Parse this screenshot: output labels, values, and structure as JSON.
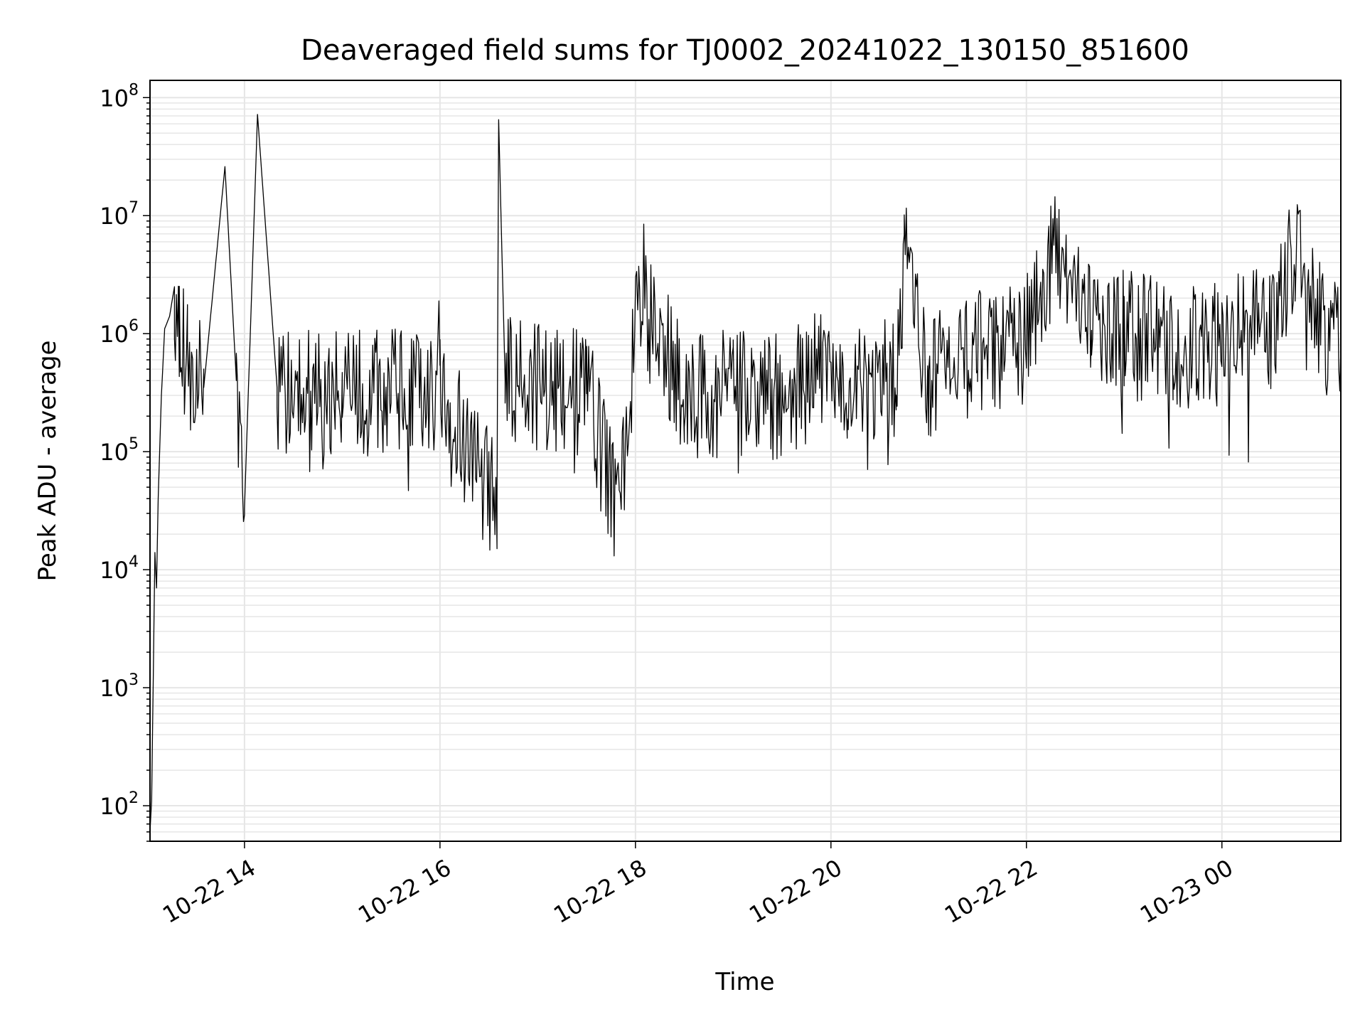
{
  "chart_data": {
    "type": "line",
    "title": "Deaveraged field sums for TJ0002_20241022_130150_851600",
    "xlabel": "Time",
    "ylabel": "Peak ADU - average",
    "x_range": [
      "2024-10-22 13:02",
      "2024-10-23 01:13"
    ],
    "ylim": [
      50,
      140000000
    ],
    "y_scale": "log",
    "grid": "both (major and minor on y)",
    "legend": "none",
    "line_color": "#000000",
    "x_ticks": [
      "10-22 14",
      "10-22 16",
      "10-22 18",
      "10-22 20",
      "10-22 22",
      "10-23 00"
    ],
    "y_ticks": [
      {
        "base": "10",
        "exp": "2"
      },
      {
        "base": "10",
        "exp": "3"
      },
      {
        "base": "10",
        "exp": "4"
      },
      {
        "base": "10",
        "exp": "5"
      },
      {
        "base": "10",
        "exp": "6"
      },
      {
        "base": "10",
        "exp": "7"
      },
      {
        "base": "10",
        "exp": "8"
      }
    ],
    "series": [
      {
        "points": [
          [
            "2024-10-22 13:02",
            60
          ],
          [
            "2024-10-22 13:03",
            110
          ],
          [
            "2024-10-22 13:04",
            1200
          ],
          [
            "2024-10-22 13:05",
            14000
          ],
          [
            "2024-10-22 13:06",
            7000
          ],
          [
            "2024-10-22 13:07",
            40000
          ],
          [
            "2024-10-22 13:09",
            300000
          ],
          [
            "2024-10-22 13:11",
            1100000
          ],
          [
            "2024-10-22 13:14",
            1400000
          ],
          [
            "2024-10-22 13:17",
            2500000
          ],
          [
            "2024-10-22 13:20",
            1000000
          ],
          [
            "2024-10-22 13:25",
            500000
          ],
          [
            "2024-10-22 13:35",
            350000
          ],
          [
            "2024-10-22 13:48",
            26000000
          ],
          [
            "2024-10-22 13:55",
            400000
          ],
          [
            "2024-10-22 14:00",
            33000
          ],
          [
            "2024-10-22 14:08",
            72000000
          ],
          [
            "2024-10-22 14:20",
            350000
          ],
          [
            "2024-10-22 15:00",
            300000
          ],
          [
            "2024-10-22 15:30",
            330000
          ],
          [
            "2024-10-22 16:00",
            300000
          ],
          [
            "2024-10-22 16:35",
            37000
          ],
          [
            "2024-10-22 16:36",
            65000000
          ],
          [
            "2024-10-22 16:40",
            400000
          ],
          [
            "2024-10-22 17:00",
            350000
          ],
          [
            "2024-10-22 17:30",
            300000
          ],
          [
            "2024-10-22 17:50",
            31000
          ],
          [
            "2024-10-22 18:02",
            2100000
          ],
          [
            "2024-10-22 18:30",
            300000
          ],
          [
            "2024-10-22 19:00",
            320000
          ],
          [
            "2024-10-22 19:30",
            280000
          ],
          [
            "2024-10-22 19:55",
            500000
          ],
          [
            "2024-10-22 20:10",
            300000
          ],
          [
            "2024-10-22 20:40",
            400000
          ],
          [
            "2024-10-22 20:45",
            4000000
          ],
          [
            "2024-10-22 21:00",
            400000
          ],
          [
            "2024-10-22 21:30",
            700000
          ],
          [
            "2024-10-22 22:00",
            900000
          ],
          [
            "2024-10-22 22:20",
            5500000
          ],
          [
            "2024-10-22 22:40",
            1300000
          ],
          [
            "2024-10-22 23:00",
            1000000
          ],
          [
            "2024-10-22 23:30",
            800000
          ],
          [
            "2024-10-23 00:00",
            900000
          ],
          [
            "2024-10-23 00:30",
            1100000
          ],
          [
            "2024-10-23 00:45",
            5500000
          ],
          [
            "2024-10-23 01:00",
            1200000
          ],
          [
            "2024-10-23 01:13",
            800000
          ]
        ]
      }
    ]
  }
}
